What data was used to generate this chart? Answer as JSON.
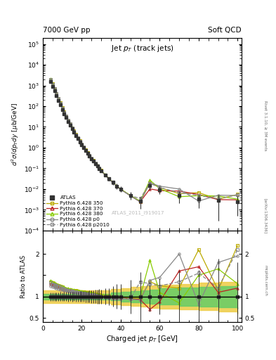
{
  "title_left": "7000 GeV pp",
  "title_right": "Soft QCD",
  "plot_title": "Jet $p_T$ (track jets)",
  "xlabel": "Charged jet $p_T$ [GeV]",
  "ylabel_main": "$d^2\\sigma/dp_Tdy$ [$\\mu$b/GeV]",
  "ylabel_ratio": "Ratio to ATLAS",
  "watermark": "ATLAS_2011_I919017",
  "right_text1": "Rivet 3.1.10, ≥ 3M events",
  "right_text2": "[arXiv:1306.3436]",
  "right_text3": "mcplots.cern.ch",
  "colors": {
    "atlas": "#333333",
    "p350": "#bbaa00",
    "p370": "#bb2222",
    "p380": "#88cc00",
    "p0": "#888888",
    "p2010": "#888888"
  },
  "pt": [
    4,
    5,
    6,
    7,
    8,
    9,
    10,
    11,
    12,
    13,
    14,
    15,
    16,
    17,
    18,
    19,
    20,
    21,
    22,
    23,
    24,
    25,
    26,
    27,
    28,
    29,
    30,
    32,
    34,
    36,
    38,
    40,
    45,
    50,
    55,
    60,
    70,
    80,
    90,
    100
  ],
  "atlas_y": [
    1500,
    900,
    550,
    320,
    190,
    115,
    68,
    43,
    28,
    18,
    12,
    8.0,
    5.5,
    3.8,
    2.7,
    1.9,
    1.35,
    0.96,
    0.7,
    0.52,
    0.39,
    0.29,
    0.22,
    0.168,
    0.128,
    0.099,
    0.077,
    0.048,
    0.031,
    0.021,
    0.014,
    0.01,
    0.005,
    0.0026,
    0.0145,
    0.0095,
    0.005,
    0.0032,
    0.0028,
    0.0025
  ],
  "atlas_yerr": [
    150,
    90,
    55,
    32,
    19,
    12,
    7,
    4.5,
    3,
    2,
    1.3,
    0.9,
    0.6,
    0.45,
    0.32,
    0.23,
    0.17,
    0.12,
    0.09,
    0.07,
    0.055,
    0.042,
    0.032,
    0.026,
    0.021,
    0.017,
    0.013,
    0.009,
    0.006,
    0.005,
    0.004,
    0.003,
    0.002,
    0.0015,
    0.005,
    0.004,
    0.003,
    0.002,
    0.0025,
    0.002
  ],
  "r350": [
    1.35,
    1.32,
    1.3,
    1.28,
    1.26,
    1.24,
    1.22,
    1.2,
    1.18,
    1.17,
    1.16,
    1.15,
    1.15,
    1.14,
    1.13,
    1.12,
    1.12,
    1.11,
    1.1,
    1.1,
    1.09,
    1.08,
    1.07,
    1.06,
    1.05,
    1.04,
    1.03,
    1.02,
    1.01,
    1.0,
    0.99,
    0.98,
    0.97,
    0.96,
    1.35,
    1.25,
    1.2,
    2.1,
    1.15,
    2.2
  ],
  "r370": [
    1.3,
    1.28,
    1.26,
    1.24,
    1.22,
    1.2,
    1.18,
    1.17,
    1.16,
    1.15,
    1.14,
    1.13,
    1.12,
    1.12,
    1.11,
    1.1,
    1.09,
    1.09,
    1.08,
    1.07,
    1.07,
    1.06,
    1.05,
    1.04,
    1.03,
    1.02,
    1.01,
    1.0,
    0.99,
    0.98,
    0.98,
    0.97,
    0.95,
    0.93,
    0.7,
    0.88,
    1.6,
    1.7,
    1.1,
    1.2
  ],
  "r380": [
    1.38,
    1.35,
    1.32,
    1.3,
    1.28,
    1.26,
    1.24,
    1.22,
    1.2,
    1.19,
    1.18,
    1.17,
    1.16,
    1.15,
    1.14,
    1.13,
    1.13,
    1.12,
    1.11,
    1.1,
    1.1,
    1.09,
    1.08,
    1.07,
    1.06,
    1.05,
    1.04,
    1.03,
    1.02,
    1.01,
    1.0,
    0.99,
    0.98,
    1.0,
    1.85,
    1.1,
    0.85,
    1.5,
    1.65,
    1.3
  ],
  "r_p0": [
    1.25,
    1.23,
    1.21,
    1.19,
    1.18,
    1.17,
    1.16,
    1.15,
    1.14,
    1.13,
    1.12,
    1.11,
    1.11,
    1.1,
    1.09,
    1.08,
    1.08,
    1.07,
    1.06,
    1.06,
    1.05,
    1.04,
    1.03,
    1.02,
    1.01,
    1.0,
    0.99,
    0.98,
    0.97,
    0.96,
    0.96,
    0.95,
    0.94,
    0.92,
    1.38,
    1.45,
    2.0,
    0.82,
    1.8,
    1.95
  ],
  "r_p2010": [
    1.32,
    1.3,
    1.28,
    1.26,
    1.24,
    1.22,
    1.2,
    1.18,
    1.16,
    1.15,
    1.14,
    1.13,
    1.12,
    1.11,
    1.1,
    1.09,
    1.08,
    1.08,
    1.07,
    1.06,
    1.05,
    1.05,
    1.04,
    1.03,
    1.02,
    1.01,
    1.0,
    0.99,
    0.98,
    0.97,
    0.96,
    0.96,
    0.95,
    1.35,
    1.3,
    1.25,
    1.35,
    1.55,
    1.2,
    2.1
  ],
  "band_yellow_edges": [
    0,
    5,
    10,
    15,
    20,
    25,
    30,
    35,
    40,
    45,
    50,
    55,
    60,
    70,
    80,
    90,
    100
  ],
  "band_yellow_lo": [
    0.85,
    0.85,
    0.85,
    0.85,
    0.85,
    0.85,
    0.85,
    0.82,
    0.8,
    0.78,
    0.76,
    0.74,
    0.72,
    0.7,
    0.68,
    0.65,
    0.6
  ],
  "band_yellow_hi": [
    1.15,
    1.15,
    1.15,
    1.15,
    1.15,
    1.15,
    1.15,
    1.18,
    1.2,
    1.22,
    1.24,
    1.26,
    1.28,
    1.3,
    1.32,
    1.35,
    1.4
  ],
  "band_green_edges": [
    0,
    5,
    10,
    15,
    20,
    25,
    30,
    35,
    40,
    45,
    50,
    55,
    60,
    70,
    80,
    90,
    100
  ],
  "band_green_lo": [
    0.93,
    0.93,
    0.93,
    0.93,
    0.93,
    0.93,
    0.93,
    0.91,
    0.89,
    0.87,
    0.85,
    0.83,
    0.81,
    0.79,
    0.77,
    0.75,
    0.72
  ],
  "band_green_hi": [
    1.07,
    1.07,
    1.07,
    1.07,
    1.07,
    1.07,
    1.07,
    1.09,
    1.11,
    1.13,
    1.15,
    1.17,
    1.19,
    1.21,
    1.23,
    1.25,
    1.28
  ]
}
